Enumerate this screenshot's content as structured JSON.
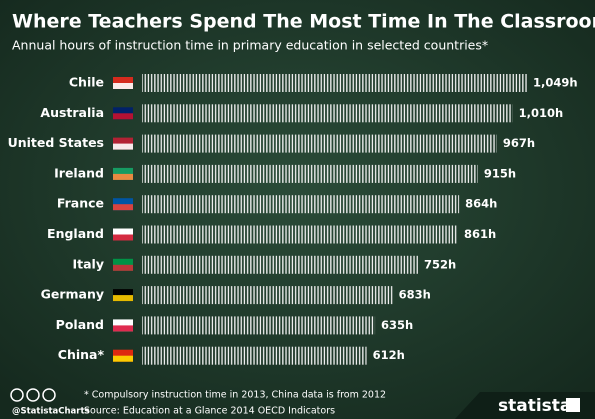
{
  "chart_data": {
    "type": "bar",
    "orientation": "horizontal",
    "title": "Where Teachers Spend The Most Time In The Classroom",
    "subtitle": "Annual hours of instruction time in primary education in selected countries*",
    "categories": [
      "Chile",
      "Australia",
      "United States",
      "Ireland",
      "France",
      "England",
      "Italy",
      "Germany",
      "Poland",
      "China*"
    ],
    "values": [
      1049,
      1010,
      967,
      915,
      864,
      861,
      752,
      683,
      635,
      612
    ],
    "value_labels": [
      "1,049h",
      "1,010h",
      "967h",
      "915h",
      "864h",
      "861h",
      "752h",
      "683h",
      "635h",
      "612h"
    ],
    "color": "#ffffff",
    "footnote": "* Compulsory instruction time in 2013, China data is from 2012",
    "source": "Source: Education at a Glance 2014 OECD Indicators",
    "credit": "@StatistaCharts",
    "brand": "statista"
  }
}
